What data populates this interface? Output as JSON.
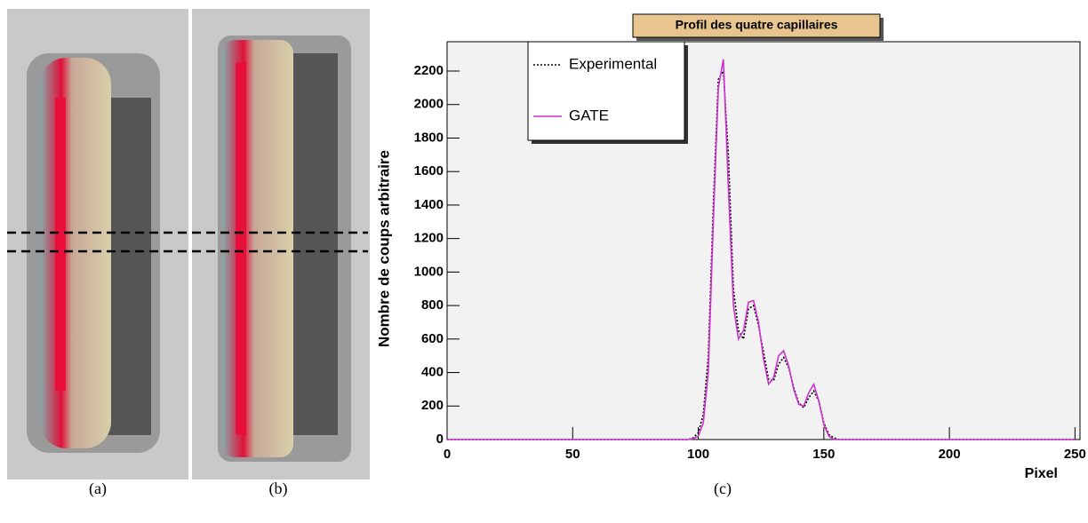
{
  "captions": [
    "(a)",
    "(b)",
    "(c)"
  ],
  "chart_data": {
    "type": "line",
    "title": "Profil des quatre capillaires",
    "x_label": "Pixel",
    "y_label": "Nombre de coups arbitraire",
    "x": [
      0,
      96,
      98,
      100,
      102,
      104,
      106,
      108,
      110,
      112,
      114,
      116,
      118,
      120,
      122,
      124,
      126,
      128,
      130,
      132,
      134,
      136,
      138,
      140,
      142,
      144,
      146,
      148,
      150,
      152,
      154,
      156,
      250
    ],
    "series": [
      {
        "name": "Experimental",
        "color": "#000000",
        "dash": true,
        "values": [
          0,
          0,
          10,
          40,
          150,
          500,
          1400,
          2150,
          2200,
          1700,
          900,
          650,
          600,
          780,
          800,
          680,
          520,
          360,
          350,
          450,
          490,
          430,
          310,
          220,
          190,
          250,
          290,
          230,
          100,
          30,
          10,
          0,
          0
        ]
      },
      {
        "name": "GATE",
        "color": "#cc33cc",
        "dash": false,
        "values": [
          0,
          0,
          5,
          20,
          100,
          400,
          1300,
          2100,
          2270,
          1500,
          800,
          600,
          650,
          820,
          830,
          700,
          480,
          330,
          370,
          500,
          530,
          440,
          300,
          210,
          200,
          280,
          330,
          230,
          90,
          20,
          0,
          0,
          0
        ]
      }
    ],
    "xlim": [
      0,
      252
    ],
    "ylim": [
      0,
      2375
    ],
    "xticks": [
      0,
      50,
      100,
      150,
      200,
      250
    ],
    "yticks": [
      0,
      200,
      400,
      600,
      800,
      1000,
      1200,
      1400,
      1600,
      1800,
      2000,
      2200
    ]
  }
}
